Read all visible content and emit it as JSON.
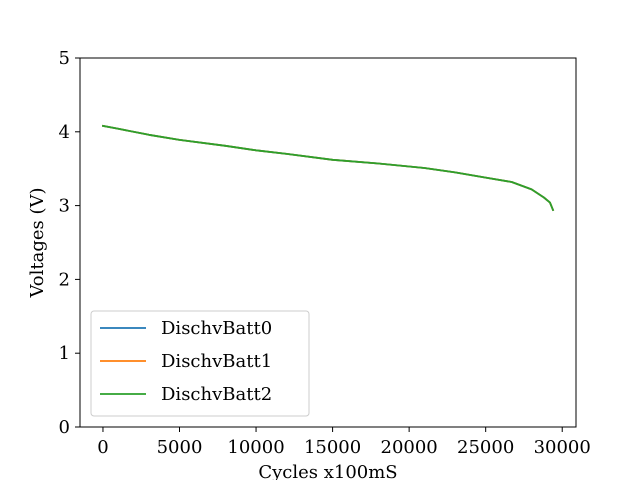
{
  "chart_data": {
    "type": "line",
    "title": "",
    "xlabel": "Cycles x100mS",
    "ylabel": "Voltages (V)",
    "xlim": [
      -1500,
      30900
    ],
    "ylim": [
      0,
      5
    ],
    "xticks": [
      0,
      5000,
      10000,
      15000,
      20000,
      25000,
      30000
    ],
    "yticks": [
      0,
      1,
      2,
      3,
      4,
      5
    ],
    "grid": false,
    "legend_position": "lower-left",
    "series": [
      {
        "name": "DischvBatt0",
        "color": "#1f77b4",
        "x": [
          0,
          1000,
          3000,
          5000,
          8000,
          10000,
          12000,
          15000,
          18000,
          21000,
          23000,
          25000,
          26700,
          28000,
          28800,
          29200,
          29400
        ],
        "y": [
          4.08,
          4.04,
          3.96,
          3.89,
          3.81,
          3.75,
          3.7,
          3.62,
          3.57,
          3.51,
          3.45,
          3.38,
          3.32,
          3.22,
          3.11,
          3.04,
          2.94
        ]
      },
      {
        "name": "DischvBatt1",
        "color": "#ff7f0e",
        "x": [
          0,
          1000,
          3000,
          5000,
          8000,
          10000,
          12000,
          15000,
          18000,
          21000,
          23000,
          25000,
          26700,
          28000,
          28800,
          29200,
          29400
        ],
        "y": [
          4.08,
          4.04,
          3.96,
          3.89,
          3.81,
          3.75,
          3.7,
          3.62,
          3.57,
          3.51,
          3.45,
          3.38,
          3.32,
          3.22,
          3.11,
          3.04,
          2.94
        ]
      },
      {
        "name": "DischvBatt2",
        "color": "#2ca02c",
        "x": [
          0,
          1000,
          3000,
          5000,
          8000,
          10000,
          12000,
          15000,
          18000,
          21000,
          23000,
          25000,
          26700,
          28000,
          28800,
          29200,
          29400
        ],
        "y": [
          4.08,
          4.04,
          3.96,
          3.89,
          3.81,
          3.75,
          3.7,
          3.62,
          3.57,
          3.51,
          3.45,
          3.38,
          3.32,
          3.22,
          3.11,
          3.04,
          2.94
        ]
      }
    ]
  }
}
